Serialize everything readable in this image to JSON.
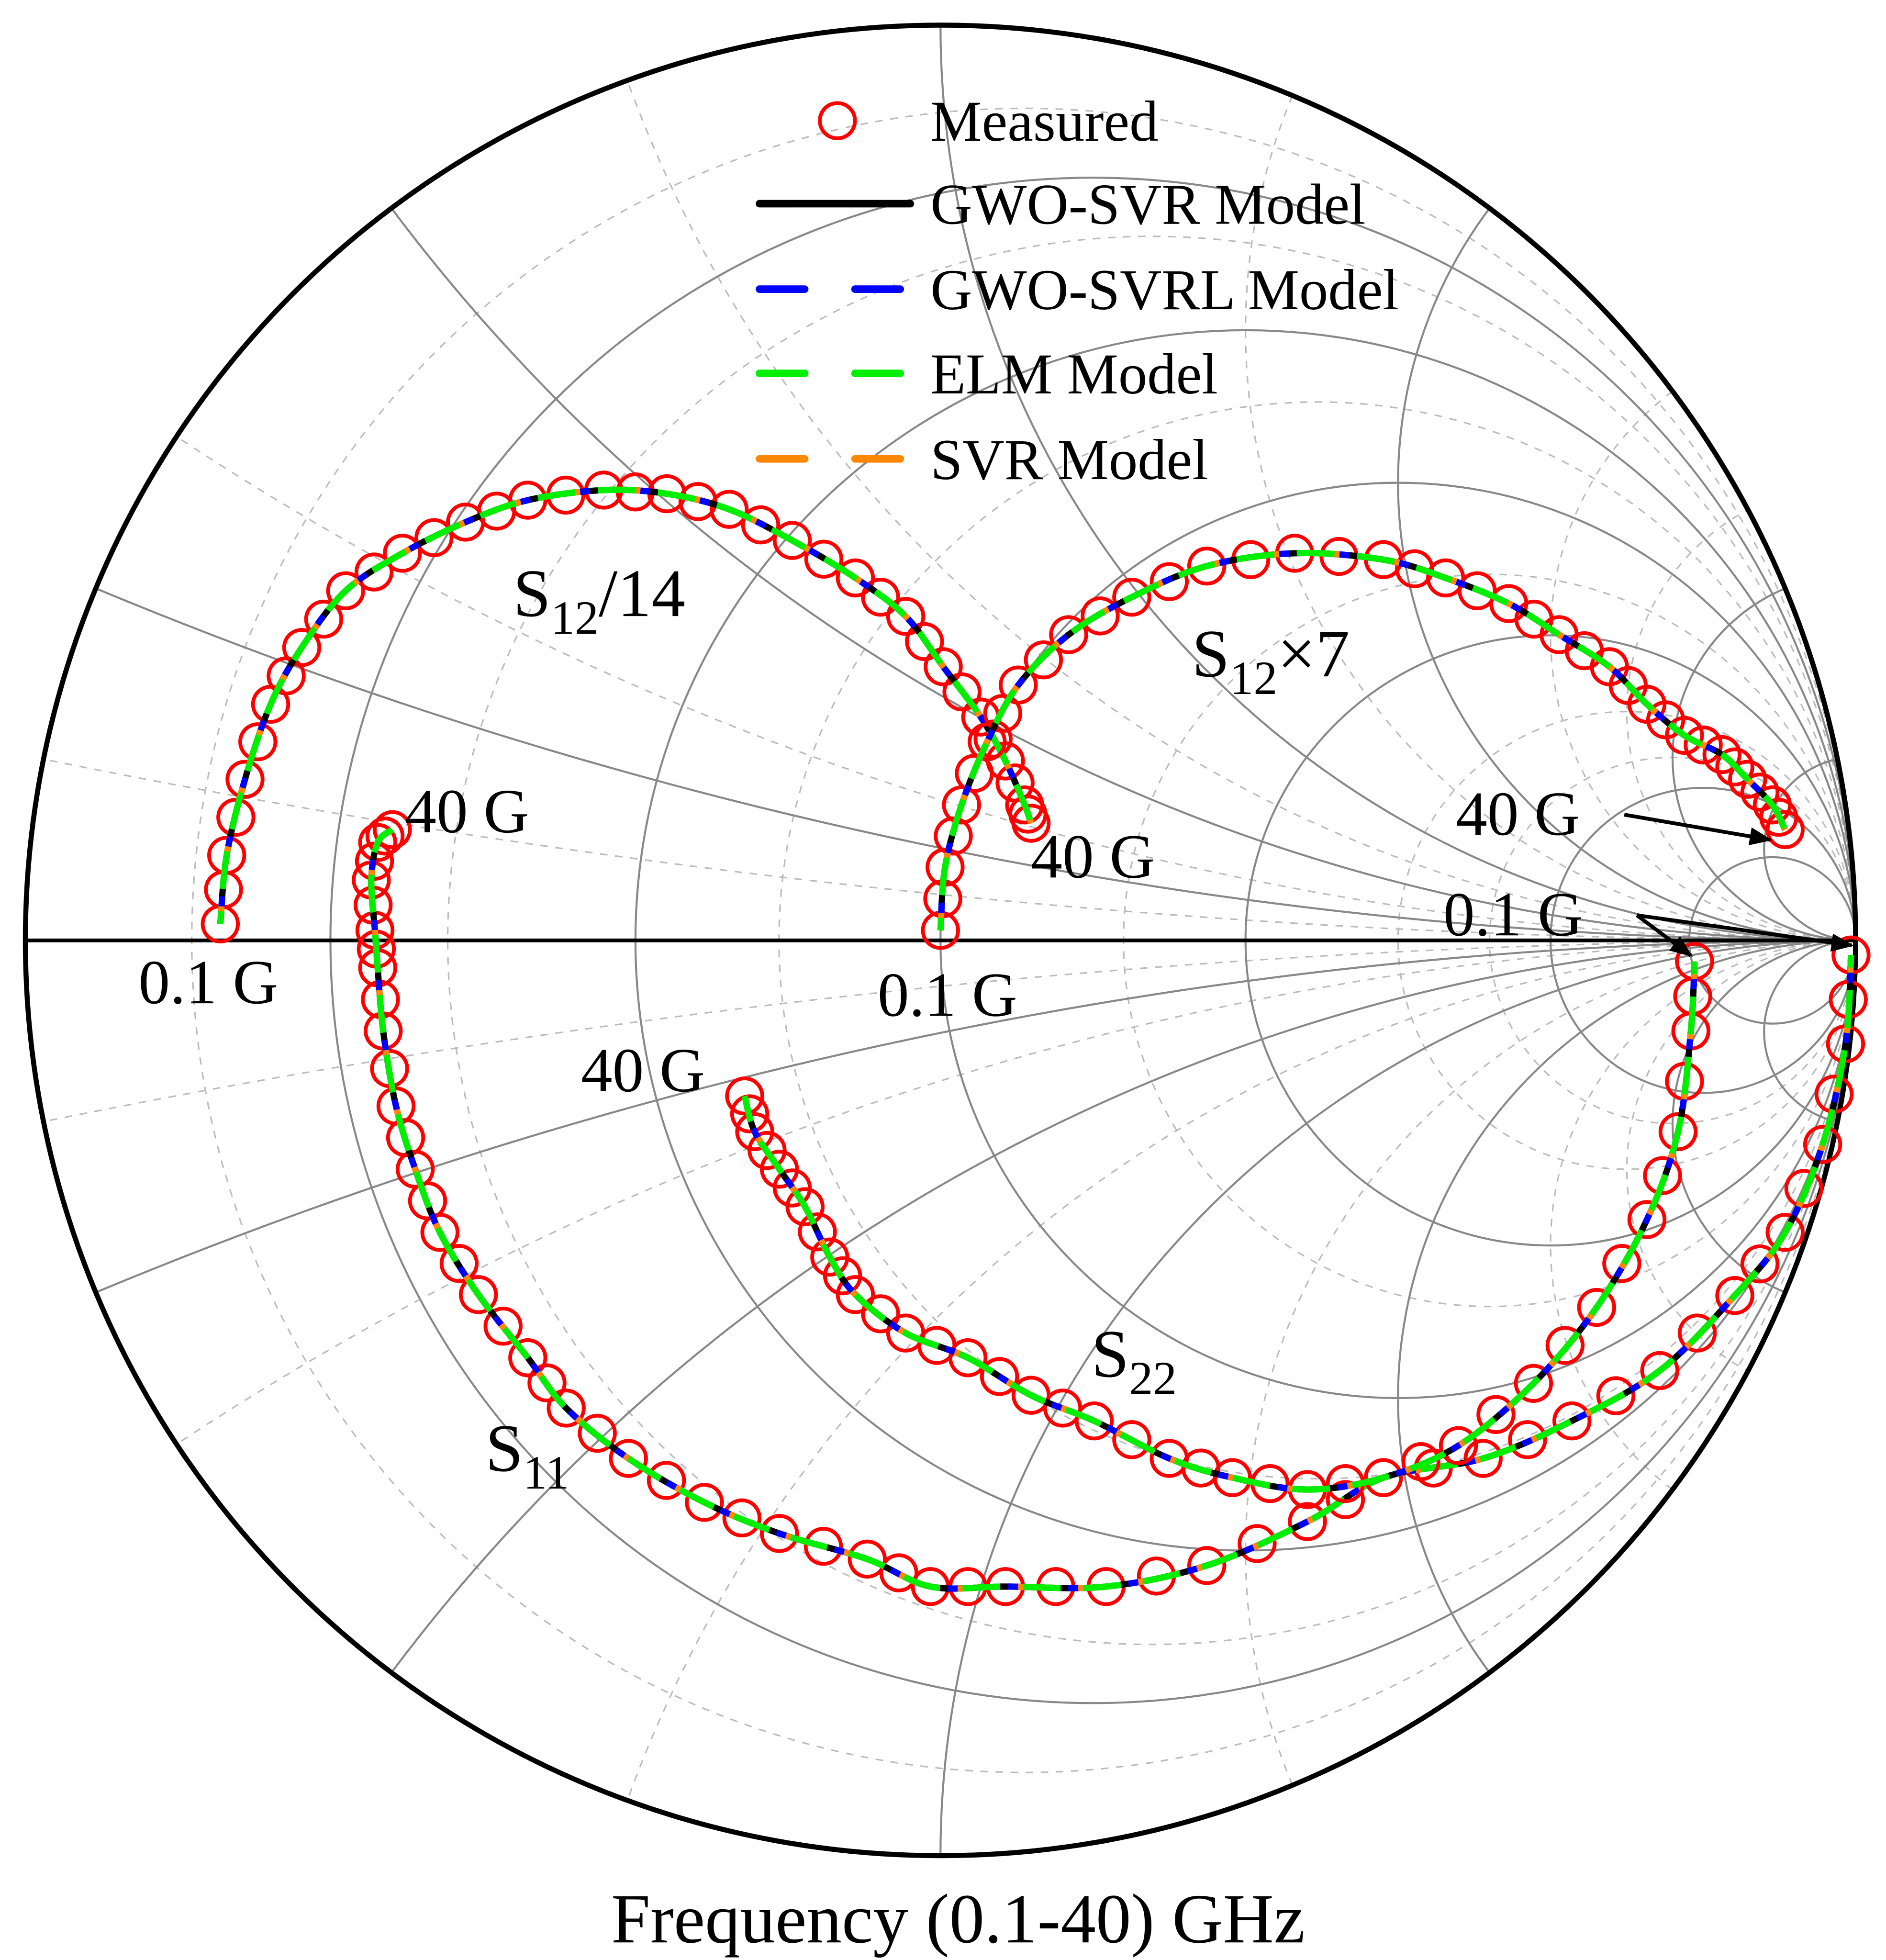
{
  "chart_data": {
    "type": "scatter",
    "subtype": "smith-chart",
    "xlabel": "Frequency (0.1-40) GHz",
    "coordinate_system": "reflection coefficient (Gamma real, Gamma imag), unit circle",
    "grid": true,
    "legend_placement": "top-center",
    "legend": [
      {
        "label": "Measured",
        "style": "circle-marker",
        "color": "#ff0000"
      },
      {
        "label": "GWO-SVR Model",
        "style": "solid",
        "color": "#000000"
      },
      {
        "label": "GWO-SVRL Model",
        "style": "dashed",
        "color": "#0000ff"
      },
      {
        "label": "ELM Model",
        "style": "dashed",
        "color": "#00ee00"
      },
      {
        "label": "SVR Model",
        "style": "dashed",
        "color": "#ff8800"
      }
    ],
    "annotations": {
      "s12_div14": {
        "main": "S",
        "sub": "12",
        "tail": "/14"
      },
      "s12_x7": {
        "main": "S",
        "sub": "12",
        "tail": "×7"
      },
      "s22": {
        "main": "S",
        "sub": "22",
        "tail": ""
      },
      "s11": {
        "main": "S",
        "sub": "11",
        "tail": ""
      },
      "f_start_s12d": "0.1 G",
      "f_start_s12x": "0.1 G",
      "f_end_s12d": "40 G",
      "f_end_s12x": "40 G",
      "f_end_s11": "40 G",
      "f_end_s22": "40 G",
      "f_start_right": "0.1 G"
    },
    "series": [
      {
        "name": "S11",
        "frequency_range_ghz": [
          0.1,
          40
        ],
        "points": [
          [
            0.995,
            -0.016
          ],
          [
            0.989,
            -0.113
          ],
          [
            0.964,
            -0.223
          ],
          [
            0.923,
            -0.319
          ],
          [
            0.868,
            -0.388
          ],
          [
            0.786,
            -0.47
          ],
          [
            0.69,
            -0.525
          ],
          [
            0.593,
            -0.566
          ],
          [
            0.484,
            -0.587
          ],
          [
            0.401,
            -0.635
          ],
          [
            0.291,
            -0.683
          ],
          [
            0.181,
            -0.706
          ],
          [
            0.071,
            -0.706
          ],
          [
            -0.011,
            -0.706
          ],
          [
            -0.08,
            -0.676
          ],
          [
            -0.176,
            -0.648
          ],
          [
            -0.258,
            -0.614
          ],
          [
            -0.341,
            -0.566
          ],
          [
            -0.409,
            -0.511
          ],
          [
            -0.451,
            -0.456
          ],
          [
            -0.505,
            -0.387
          ],
          [
            -0.547,
            -0.319
          ],
          [
            -0.574,
            -0.25
          ],
          [
            -0.595,
            -0.181
          ],
          [
            -0.609,
            -0.099
          ],
          [
            -0.615,
            -0.03
          ],
          [
            -0.618,
            0.011
          ],
          [
            -0.622,
            0.066
          ],
          [
            -0.615,
            0.107
          ],
          [
            -0.599,
            0.121
          ]
        ]
      },
      {
        "name": "S22",
        "frequency_range_ghz": [
          0.1,
          40
        ],
        "points": [
          [
            0.824,
            -0.023
          ],
          [
            0.82,
            -0.099
          ],
          [
            0.806,
            -0.209
          ],
          [
            0.772,
            -0.305
          ],
          [
            0.717,
            -0.401
          ],
          [
            0.648,
            -0.484
          ],
          [
            0.566,
            -0.552
          ],
          [
            0.484,
            -0.587
          ],
          [
            0.401,
            -0.6
          ],
          [
            0.319,
            -0.587
          ],
          [
            0.25,
            -0.566
          ],
          [
            0.168,
            -0.525
          ],
          [
            0.099,
            -0.497
          ],
          [
            0.03,
            -0.456
          ],
          [
            -0.038,
            -0.429
          ],
          [
            -0.093,
            -0.387
          ],
          [
            -0.121,
            -0.346
          ],
          [
            -0.148,
            -0.291
          ],
          [
            -0.176,
            -0.25
          ],
          [
            -0.203,
            -0.209
          ],
          [
            -0.214,
            -0.17
          ]
        ]
      },
      {
        "name": "S12/14",
        "frequency_range_ghz": [
          0.1,
          40
        ],
        "points": [
          [
            -0.787,
            0.018
          ],
          [
            -0.78,
            0.093
          ],
          [
            -0.76,
            0.176
          ],
          [
            -0.732,
            0.258
          ],
          [
            -0.698,
            0.32
          ],
          [
            -0.65,
            0.382
          ],
          [
            -0.588,
            0.423
          ],
          [
            -0.519,
            0.457
          ],
          [
            -0.451,
            0.481
          ],
          [
            -0.368,
            0.492
          ],
          [
            -0.299,
            0.488
          ],
          [
            -0.231,
            0.471
          ],
          [
            -0.162,
            0.437
          ],
          [
            -0.093,
            0.396
          ],
          [
            -0.038,
            0.354
          ],
          [
            0.003,
            0.299
          ],
          [
            0.044,
            0.244
          ],
          [
            0.071,
            0.196
          ],
          [
            0.092,
            0.148
          ],
          [
            0.099,
            0.128
          ]
        ]
      },
      {
        "name": "S12×7",
        "frequency_range_ghz": [
          0.1,
          40
        ],
        "points": [
          [
            0.0,
            0.011
          ],
          [
            0.005,
            0.08
          ],
          [
            0.023,
            0.148
          ],
          [
            0.051,
            0.217
          ],
          [
            0.085,
            0.279
          ],
          [
            0.14,
            0.334
          ],
          [
            0.209,
            0.375
          ],
          [
            0.291,
            0.409
          ],
          [
            0.387,
            0.423
          ],
          [
            0.484,
            0.416
          ],
          [
            0.552,
            0.396
          ],
          [
            0.621,
            0.368
          ],
          [
            0.676,
            0.334
          ],
          [
            0.731,
            0.299
          ],
          [
            0.772,
            0.258
          ],
          [
            0.813,
            0.224
          ],
          [
            0.854,
            0.203
          ],
          [
            0.882,
            0.176
          ],
          [
            0.909,
            0.148
          ],
          [
            0.923,
            0.121
          ]
        ]
      }
    ],
    "grid_resistance": [
      0.2,
      0.5,
      1,
      2,
      5,
      10
    ],
    "grid_resistance_minor": [
      0.1,
      0.3,
      0.7,
      1.5,
      3,
      4
    ],
    "grid_reactance": [
      0.2,
      0.5,
      1,
      2,
      5,
      10
    ],
    "grid_reactance_minor": [
      0.1,
      0.3,
      0.7,
      1.5,
      3,
      4
    ]
  }
}
